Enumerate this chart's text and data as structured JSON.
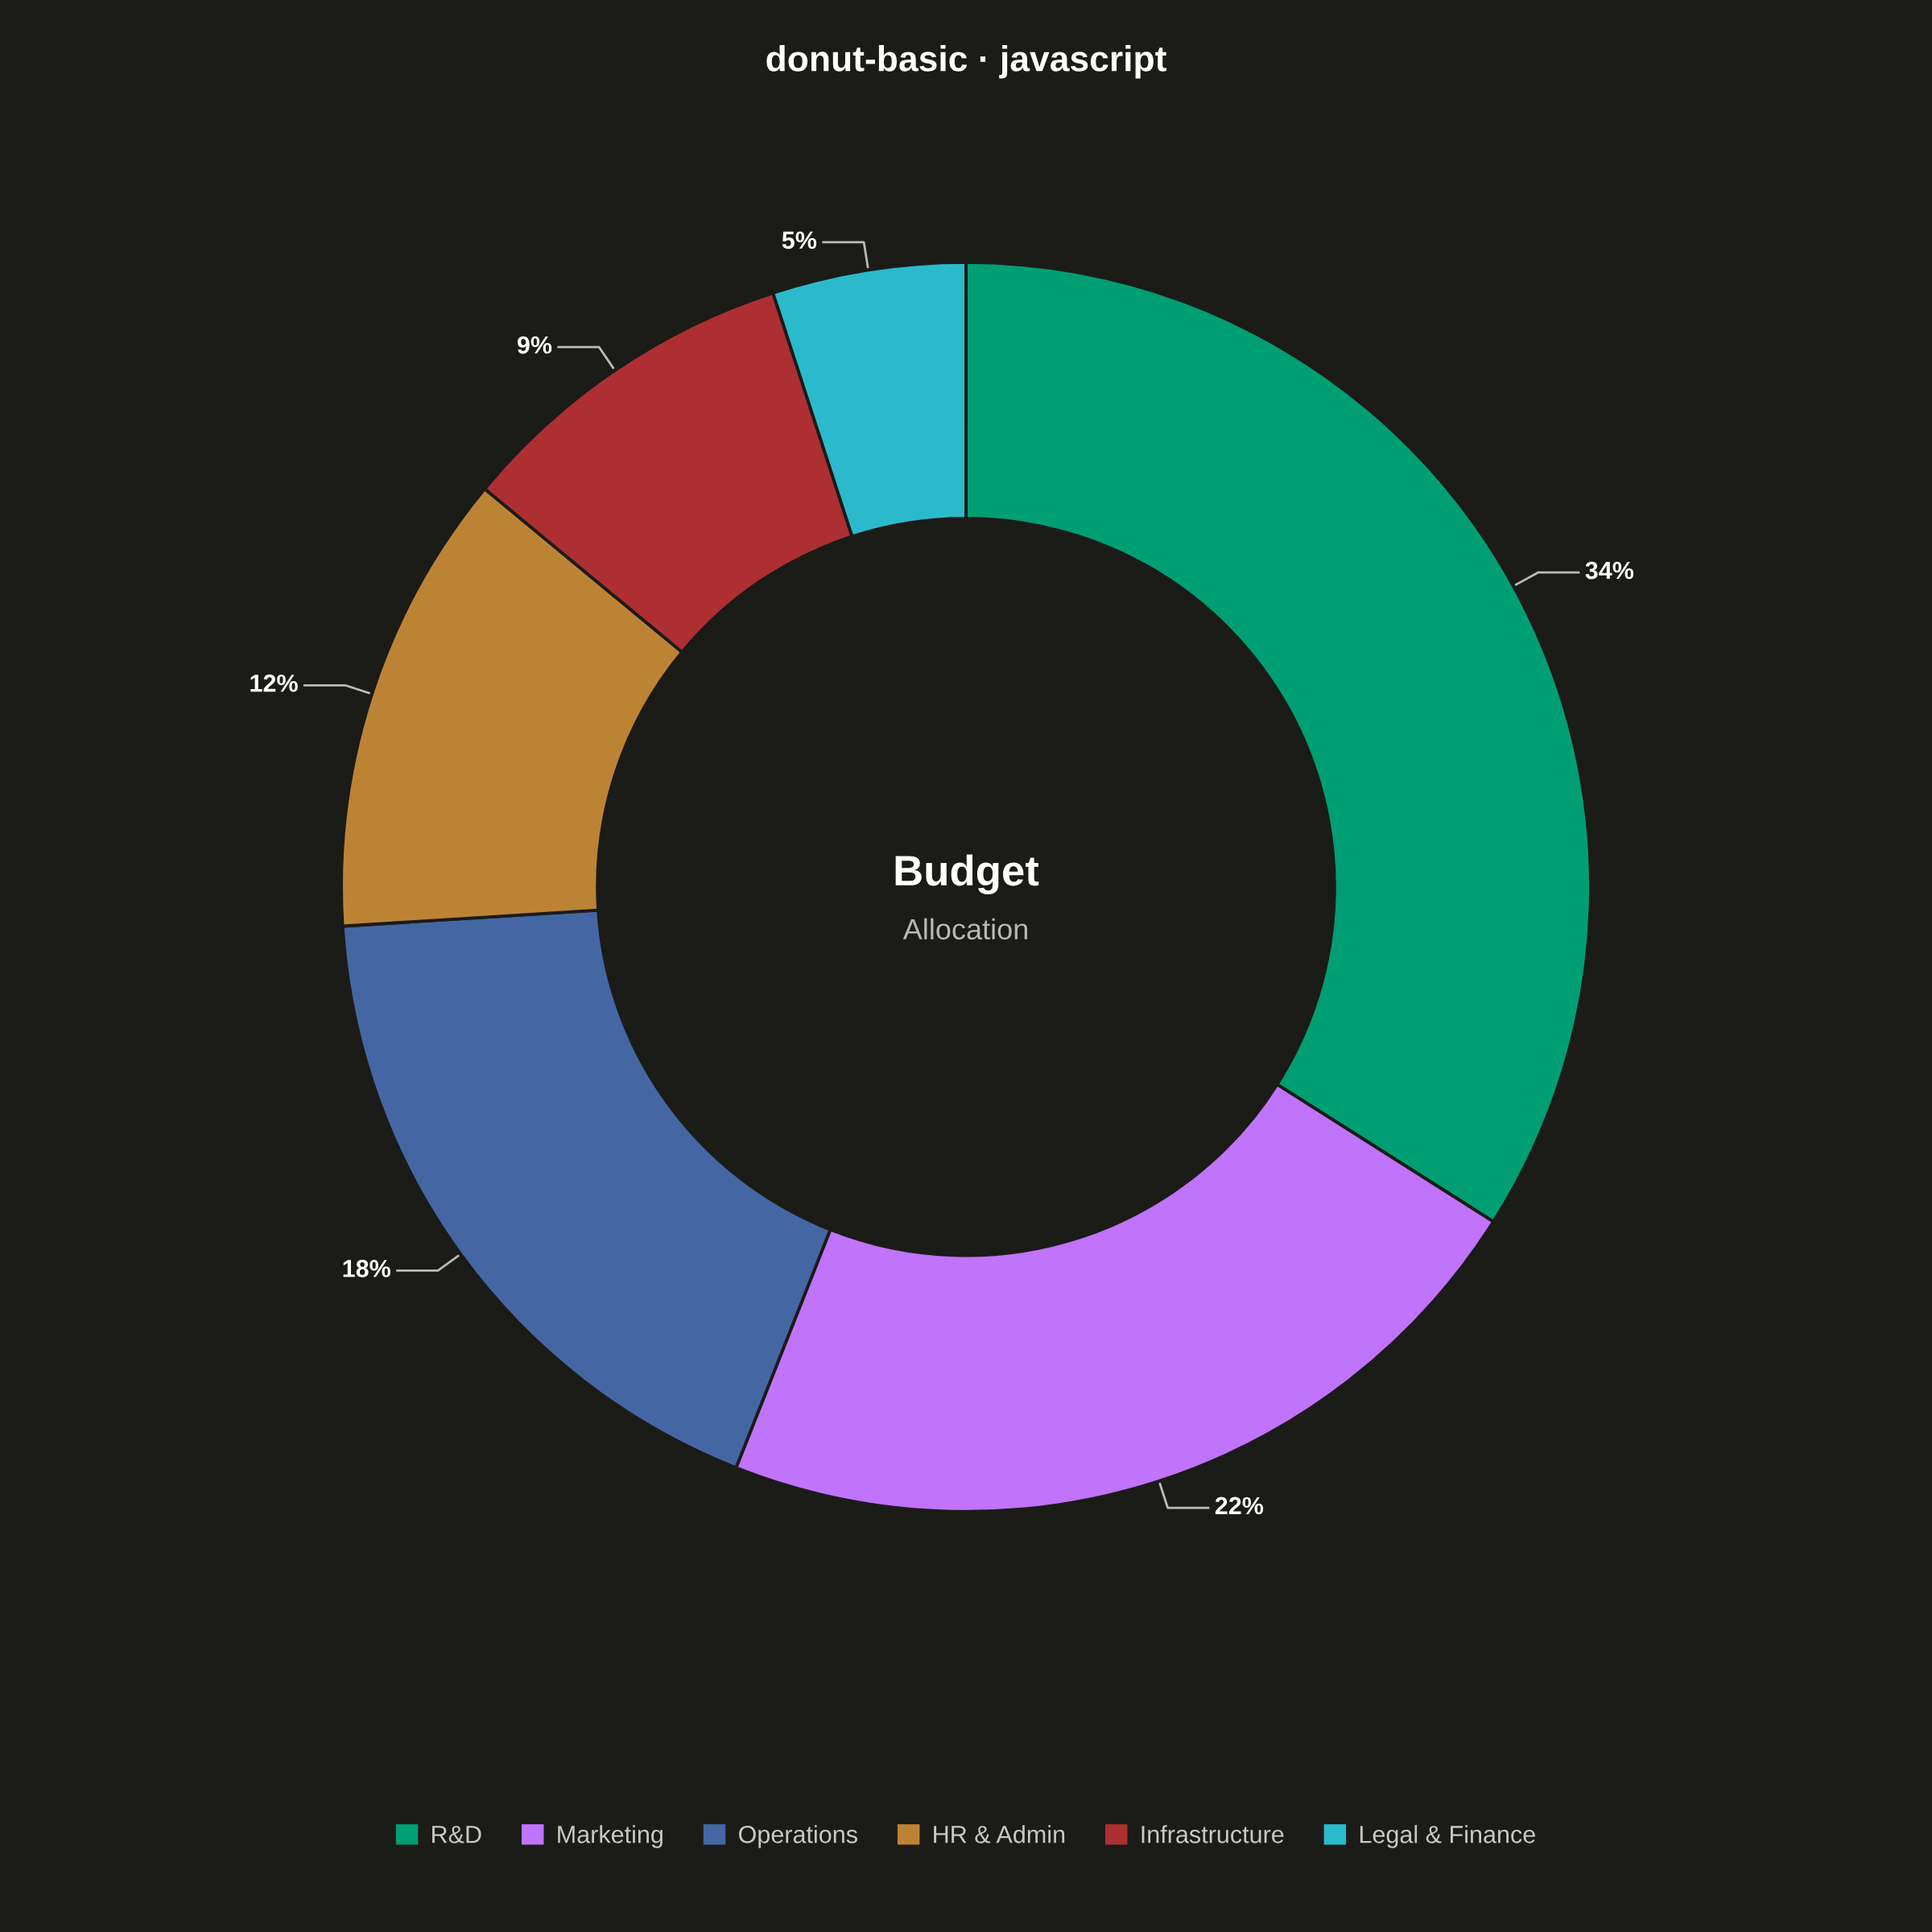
{
  "chart_data": {
    "type": "donut",
    "title": "donut-basic · javascript",
    "categories": [
      "R&D",
      "Marketing",
      "Operations",
      "HR & Admin",
      "Infrastructure",
      "Legal & Finance"
    ],
    "values": [
      34,
      22,
      18,
      12,
      9,
      5
    ],
    "colors": [
      "#009e73",
      "#c073fb",
      "#4467a4",
      "#bd8335",
      "#ad2f32",
      "#2bbacc"
    ],
    "value_labels": [
      "34%",
      "22%",
      "18%",
      "12%",
      "9%",
      "5%"
    ],
    "annotations": [
      "Budget",
      "Allocation"
    ],
    "legend": "bottom"
  }
}
